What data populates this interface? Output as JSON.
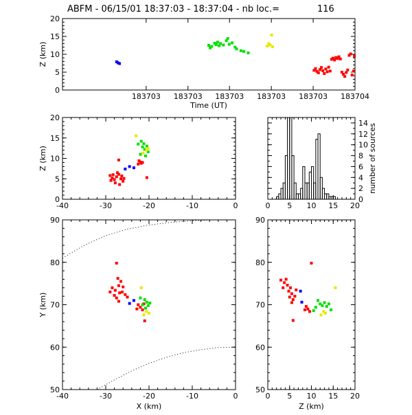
{
  "title": "ABFM - 06/15/01 18:37:03 - 18:37:04 - nb loc.=",
  "nb_loc": "116",
  "colors": {
    "blue": "#0000ff",
    "red": "#ff0000",
    "green": "#00e000",
    "yellow": "#e8e800"
  },
  "chart_data": [
    {
      "name": "time-altitude",
      "type": "scatter",
      "xlabel": "Time (UT)",
      "ylabel": "Z (km)",
      "xlim": [
        0,
        1
      ],
      "ylim": [
        0,
        20
      ],
      "x_tick_labels": [
        "183703",
        "183703",
        "183703",
        "183703",
        "183703",
        "183704"
      ],
      "y_ticks": [
        0,
        5,
        10,
        15,
        20
      ],
      "points": [
        {
          "x": 0.185,
          "y": 7.9,
          "c": "blue"
        },
        {
          "x": 0.19,
          "y": 7.6,
          "c": "blue"
        },
        {
          "x": 0.195,
          "y": 7.4,
          "c": "blue"
        },
        {
          "x": 0.5,
          "y": 12.5,
          "c": "green"
        },
        {
          "x": 0.505,
          "y": 11.8,
          "c": "green"
        },
        {
          "x": 0.51,
          "y": 12.2,
          "c": "green"
        },
        {
          "x": 0.52,
          "y": 13.1,
          "c": "green"
        },
        {
          "x": 0.525,
          "y": 12.7,
          "c": "green"
        },
        {
          "x": 0.53,
          "y": 13.4,
          "c": "green"
        },
        {
          "x": 0.535,
          "y": 12.4,
          "c": "green"
        },
        {
          "x": 0.54,
          "y": 13.0,
          "c": "green"
        },
        {
          "x": 0.55,
          "y": 12.6,
          "c": "green"
        },
        {
          "x": 0.56,
          "y": 13.8,
          "c": "green"
        },
        {
          "x": 0.565,
          "y": 14.4,
          "c": "green"
        },
        {
          "x": 0.57,
          "y": 12.8,
          "c": "green"
        },
        {
          "x": 0.58,
          "y": 13.2,
          "c": "green"
        },
        {
          "x": 0.59,
          "y": 12.0,
          "c": "green"
        },
        {
          "x": 0.595,
          "y": 11.5,
          "c": "green"
        },
        {
          "x": 0.61,
          "y": 11.0,
          "c": "green"
        },
        {
          "x": 0.62,
          "y": 10.8,
          "c": "green"
        },
        {
          "x": 0.635,
          "y": 10.4,
          "c": "green"
        },
        {
          "x": 0.7,
          "y": 12.3,
          "c": "yellow"
        },
        {
          "x": 0.705,
          "y": 13.0,
          "c": "yellow"
        },
        {
          "x": 0.71,
          "y": 12.6,
          "c": "yellow"
        },
        {
          "x": 0.715,
          "y": 15.4,
          "c": "yellow"
        },
        {
          "x": 0.718,
          "y": 12.1,
          "c": "yellow"
        },
        {
          "x": 0.86,
          "y": 5.5,
          "c": "red"
        },
        {
          "x": 0.865,
          "y": 6.0,
          "c": "red"
        },
        {
          "x": 0.87,
          "y": 5.2,
          "c": "red"
        },
        {
          "x": 0.875,
          "y": 4.8,
          "c": "red"
        },
        {
          "x": 0.88,
          "y": 5.7,
          "c": "red"
        },
        {
          "x": 0.885,
          "y": 6.3,
          "c": "red"
        },
        {
          "x": 0.89,
          "y": 5.4,
          "c": "red"
        },
        {
          "x": 0.895,
          "y": 4.6,
          "c": "red"
        },
        {
          "x": 0.9,
          "y": 5.9,
          "c": "red"
        },
        {
          "x": 0.905,
          "y": 5.1,
          "c": "red"
        },
        {
          "x": 0.91,
          "y": 6.4,
          "c": "red"
        },
        {
          "x": 0.915,
          "y": 5.3,
          "c": "red"
        },
        {
          "x": 0.92,
          "y": 8.6,
          "c": "red"
        },
        {
          "x": 0.925,
          "y": 8.9,
          "c": "red"
        },
        {
          "x": 0.93,
          "y": 8.4,
          "c": "red"
        },
        {
          "x": 0.935,
          "y": 9.1,
          "c": "red"
        },
        {
          "x": 0.94,
          "y": 8.8,
          "c": "red"
        },
        {
          "x": 0.945,
          "y": 9.3,
          "c": "red"
        },
        {
          "x": 0.95,
          "y": 8.7,
          "c": "red"
        },
        {
          "x": 0.955,
          "y": 5.0,
          "c": "red"
        },
        {
          "x": 0.96,
          "y": 4.4,
          "c": "red"
        },
        {
          "x": 0.965,
          "y": 3.8,
          "c": "red"
        },
        {
          "x": 0.97,
          "y": 4.9,
          "c": "red"
        },
        {
          "x": 0.975,
          "y": 5.6,
          "c": "red"
        },
        {
          "x": 0.98,
          "y": 9.7,
          "c": "red"
        },
        {
          "x": 0.985,
          "y": 10.1,
          "c": "red"
        },
        {
          "x": 0.99,
          "y": 4.2,
          "c": "red"
        },
        {
          "x": 0.995,
          "y": 5.3,
          "c": "red"
        },
        {
          "x": 0.998,
          "y": 9.5,
          "c": "red"
        }
      ]
    },
    {
      "name": "x-altitude",
      "type": "scatter",
      "xlabel": "",
      "ylabel": "Z (km)",
      "xlim": [
        -40,
        0
      ],
      "ylim": [
        0,
        20
      ],
      "x_ticks": [
        -40,
        -30,
        -20,
        -10,
        0
      ],
      "y_ticks": [
        0,
        5,
        10,
        15,
        20
      ],
      "points": [
        {
          "x": -24.5,
          "y": 8.0,
          "c": "blue"
        },
        {
          "x": -23.5,
          "y": 7.7,
          "c": "blue"
        },
        {
          "x": -25.5,
          "y": 7.4,
          "c": "blue"
        },
        {
          "x": -27.0,
          "y": 9.6,
          "c": "red"
        },
        {
          "x": -29.0,
          "y": 5.8,
          "c": "red"
        },
        {
          "x": -28.5,
          "y": 5.2,
          "c": "red"
        },
        {
          "x": -28.0,
          "y": 4.8,
          "c": "red"
        },
        {
          "x": -27.5,
          "y": 5.5,
          "c": "red"
        },
        {
          "x": -27.0,
          "y": 6.1,
          "c": "red"
        },
        {
          "x": -26.5,
          "y": 5.0,
          "c": "red"
        },
        {
          "x": -26.0,
          "y": 4.4,
          "c": "red"
        },
        {
          "x": -27.8,
          "y": 4.0,
          "c": "red"
        },
        {
          "x": -28.8,
          "y": 4.6,
          "c": "red"
        },
        {
          "x": -26.8,
          "y": 3.6,
          "c": "red"
        },
        {
          "x": -27.3,
          "y": 6.5,
          "c": "red"
        },
        {
          "x": -28.3,
          "y": 6.0,
          "c": "red"
        },
        {
          "x": -26.3,
          "y": 5.7,
          "c": "red"
        },
        {
          "x": -25.8,
          "y": 5.1,
          "c": "red"
        },
        {
          "x": -22.5,
          "y": 8.6,
          "c": "red"
        },
        {
          "x": -22.0,
          "y": 9.1,
          "c": "red"
        },
        {
          "x": -21.8,
          "y": 8.8,
          "c": "red"
        },
        {
          "x": -22.3,
          "y": 9.4,
          "c": "red"
        },
        {
          "x": -21.5,
          "y": 9.0,
          "c": "red"
        },
        {
          "x": -20.5,
          "y": 5.3,
          "c": "red"
        },
        {
          "x": -22.5,
          "y": 13.5,
          "c": "green"
        },
        {
          "x": -21.5,
          "y": 12.8,
          "c": "green"
        },
        {
          "x": -21.0,
          "y": 12.2,
          "c": "green"
        },
        {
          "x": -20.5,
          "y": 13.0,
          "c": "green"
        },
        {
          "x": -20.2,
          "y": 11.6,
          "c": "green"
        },
        {
          "x": -21.8,
          "y": 14.2,
          "c": "green"
        },
        {
          "x": -22.0,
          "y": 11.0,
          "c": "green"
        },
        {
          "x": -20.8,
          "y": 10.6,
          "c": "green"
        },
        {
          "x": -21.2,
          "y": 13.6,
          "c": "green"
        },
        {
          "x": -23.0,
          "y": 15.5,
          "c": "yellow"
        },
        {
          "x": -20.2,
          "y": 12.4,
          "c": "yellow"
        },
        {
          "x": -20.6,
          "y": 12.0,
          "c": "yellow"
        },
        {
          "x": -21.4,
          "y": 11.3,
          "c": "yellow"
        }
      ]
    },
    {
      "name": "altitude-histogram",
      "type": "bar",
      "ylabel": "number of sources",
      "xlim": [
        0,
        20
      ],
      "ylim": [
        0,
        15
      ],
      "x_ticks": [
        0,
        5,
        10,
        15,
        20
      ],
      "y_ticks": [
        0,
        2,
        4,
        6,
        8,
        10,
        12,
        14
      ],
      "bin_edges": [
        2,
        2.5,
        3,
        3.5,
        4,
        4.5,
        5,
        5.5,
        6,
        6.5,
        7,
        7.5,
        8,
        8.5,
        9,
        9.5,
        10,
        10.5,
        11,
        11.5,
        12,
        12.5,
        13,
        13.5,
        14,
        14.5,
        15,
        15.5
      ],
      "values": [
        0.5,
        1,
        2,
        3,
        8,
        15,
        15,
        8,
        3,
        1,
        1,
        2,
        6,
        3,
        3,
        5,
        6,
        3,
        11,
        12,
        4,
        2,
        1,
        1,
        0.5,
        0.5,
        0.5
      ]
    },
    {
      "name": "plan-view",
      "type": "scatter",
      "xlabel": "X (km)",
      "ylabel": "Y (km)",
      "xlim": [
        -40,
        0
      ],
      "ylim": [
        50,
        90
      ],
      "x_ticks": [
        -40,
        -30,
        -20,
        -10,
        0
      ],
      "y_ticks": [
        50,
        60,
        70,
        80,
        90
      ],
      "range_arcs": [
        {
          "x": [
            -40,
            -35,
            -30,
            -25,
            -20,
            -15,
            -10,
            -5,
            0
          ],
          "y": [
            81,
            84,
            86.3,
            87.8,
            88.8,
            89.4,
            89.8,
            90,
            90
          ]
        },
        {
          "x": [
            -32,
            -28,
            -24,
            -20,
            -16,
            -12,
            -8,
            -4,
            0
          ],
          "y": [
            50,
            52.3,
            54.4,
            56.2,
            57.6,
            58.7,
            59.4,
            59.9,
            60
          ]
        }
      ],
      "points": [
        {
          "x": -27.5,
          "y": 79.8,
          "c": "red"
        },
        {
          "x": -28.5,
          "y": 74.0,
          "c": "red"
        },
        {
          "x": -27.8,
          "y": 73.4,
          "c": "red"
        },
        {
          "x": -27.0,
          "y": 74.5,
          "c": "red"
        },
        {
          "x": -26.5,
          "y": 75.5,
          "c": "red"
        },
        {
          "x": -27.2,
          "y": 76.2,
          "c": "red"
        },
        {
          "x": -26.8,
          "y": 72.8,
          "c": "red"
        },
        {
          "x": -28.0,
          "y": 72.2,
          "c": "red"
        },
        {
          "x": -27.5,
          "y": 71.6,
          "c": "red"
        },
        {
          "x": -26.2,
          "y": 73.0,
          "c": "red"
        },
        {
          "x": -25.5,
          "y": 72.4,
          "c": "red"
        },
        {
          "x": -25.0,
          "y": 71.8,
          "c": "red"
        },
        {
          "x": -29.0,
          "y": 73.0,
          "c": "red"
        },
        {
          "x": -26.0,
          "y": 74.2,
          "c": "red"
        },
        {
          "x": -27.0,
          "y": 70.8,
          "c": "red"
        },
        {
          "x": -22.5,
          "y": 70.0,
          "c": "red"
        },
        {
          "x": -22.0,
          "y": 69.4,
          "c": "red"
        },
        {
          "x": -21.5,
          "y": 68.8,
          "c": "red"
        },
        {
          "x": -22.8,
          "y": 69.0,
          "c": "red"
        },
        {
          "x": -21.2,
          "y": 70.2,
          "c": "red"
        },
        {
          "x": -21.0,
          "y": 66.2,
          "c": "red"
        },
        {
          "x": -23.5,
          "y": 71.0,
          "c": "blue"
        },
        {
          "x": -24.5,
          "y": 70.3,
          "c": "blue"
        },
        {
          "x": -21.0,
          "y": 71.2,
          "c": "green"
        },
        {
          "x": -20.5,
          "y": 70.6,
          "c": "green"
        },
        {
          "x": -20.2,
          "y": 69.8,
          "c": "green"
        },
        {
          "x": -21.5,
          "y": 70.0,
          "c": "green"
        },
        {
          "x": -20.8,
          "y": 69.2,
          "c": "green"
        },
        {
          "x": -19.8,
          "y": 70.4,
          "c": "green"
        },
        {
          "x": -22.0,
          "y": 71.6,
          "c": "green"
        },
        {
          "x": -21.8,
          "y": 74.0,
          "c": "yellow"
        },
        {
          "x": -20.6,
          "y": 68.4,
          "c": "yellow"
        },
        {
          "x": -20.0,
          "y": 68.0,
          "c": "yellow"
        },
        {
          "x": -21.2,
          "y": 67.6,
          "c": "yellow"
        }
      ]
    },
    {
      "name": "altitude-y",
      "type": "scatter",
      "xlabel": "Z (km)",
      "ylabel": "",
      "xlim": [
        0,
        20
      ],
      "ylim": [
        50,
        90
      ],
      "x_ticks": [
        0,
        5,
        10,
        15,
        20
      ],
      "y_ticks": [
        50,
        60,
        70,
        80,
        90
      ],
      "points": [
        {
          "x": 10.0,
          "y": 79.8,
          "c": "red"
        },
        {
          "x": 3.0,
          "y": 75.8,
          "c": "red"
        },
        {
          "x": 3.8,
          "y": 75.2,
          "c": "red"
        },
        {
          "x": 4.5,
          "y": 74.6,
          "c": "red"
        },
        {
          "x": 5.2,
          "y": 74.0,
          "c": "red"
        },
        {
          "x": 4.8,
          "y": 73.2,
          "c": "red"
        },
        {
          "x": 5.5,
          "y": 72.6,
          "c": "red"
        },
        {
          "x": 5.0,
          "y": 71.8,
          "c": "red"
        },
        {
          "x": 5.8,
          "y": 71.2,
          "c": "red"
        },
        {
          "x": 6.2,
          "y": 72.0,
          "c": "red"
        },
        {
          "x": 3.5,
          "y": 74.0,
          "c": "red"
        },
        {
          "x": 4.2,
          "y": 76.0,
          "c": "red"
        },
        {
          "x": 6.5,
          "y": 73.5,
          "c": "red"
        },
        {
          "x": 5.5,
          "y": 70.5,
          "c": "red"
        },
        {
          "x": 5.8,
          "y": 66.3,
          "c": "red"
        },
        {
          "x": 8.8,
          "y": 69.6,
          "c": "red"
        },
        {
          "x": 9.2,
          "y": 69.0,
          "c": "red"
        },
        {
          "x": 9.6,
          "y": 68.4,
          "c": "red"
        },
        {
          "x": 8.5,
          "y": 68.8,
          "c": "red"
        },
        {
          "x": 7.8,
          "y": 70.6,
          "c": "blue"
        },
        {
          "x": 7.5,
          "y": 73.2,
          "c": "blue"
        },
        {
          "x": 11.5,
          "y": 71.0,
          "c": "green"
        },
        {
          "x": 12.0,
          "y": 70.2,
          "c": "green"
        },
        {
          "x": 12.5,
          "y": 69.8,
          "c": "green"
        },
        {
          "x": 13.0,
          "y": 70.5,
          "c": "green"
        },
        {
          "x": 13.5,
          "y": 69.6,
          "c": "green"
        },
        {
          "x": 14.0,
          "y": 70.2,
          "c": "green"
        },
        {
          "x": 11.0,
          "y": 69.4,
          "c": "green"
        },
        {
          "x": 10.5,
          "y": 68.6,
          "c": "green"
        },
        {
          "x": 14.5,
          "y": 68.8,
          "c": "green"
        },
        {
          "x": 15.5,
          "y": 74.0,
          "c": "yellow"
        },
        {
          "x": 12.8,
          "y": 68.4,
          "c": "yellow"
        },
        {
          "x": 13.2,
          "y": 68.0,
          "c": "yellow"
        },
        {
          "x": 12.2,
          "y": 67.6,
          "c": "yellow"
        }
      ]
    }
  ]
}
